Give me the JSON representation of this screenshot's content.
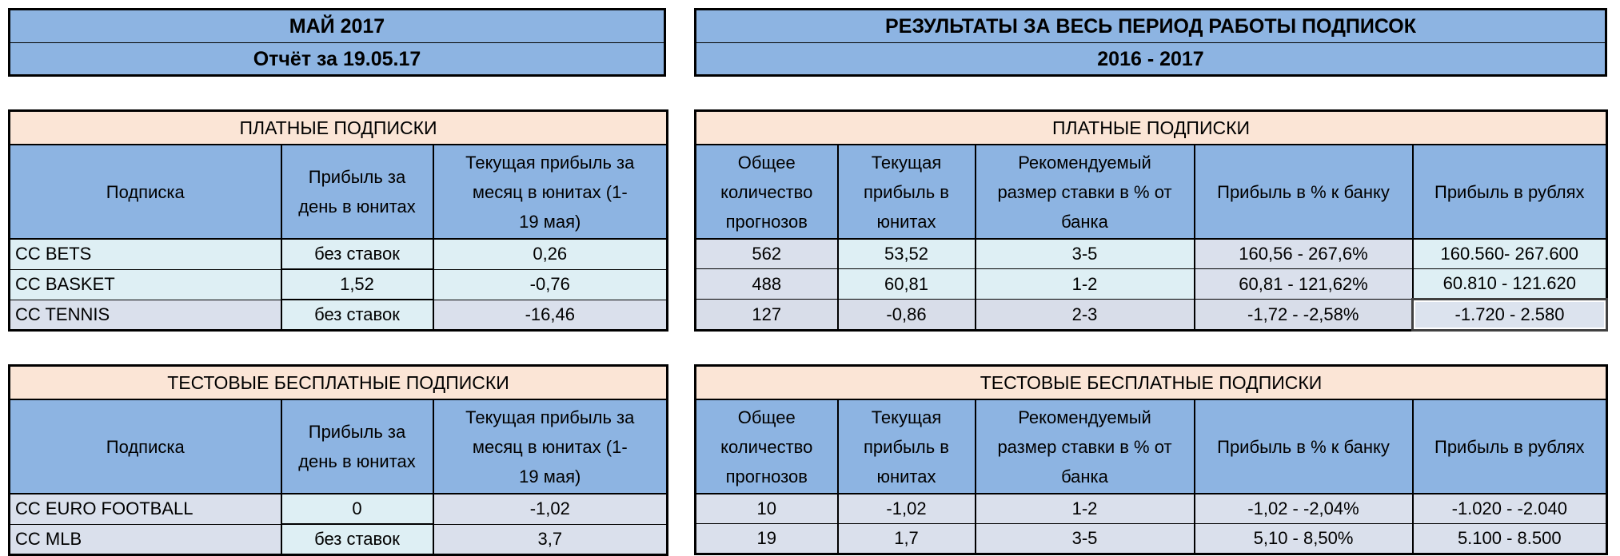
{
  "banners": {
    "left": {
      "title": "МАЙ 2017",
      "subtitle": "Отчёт за 19.05.17"
    },
    "right": {
      "title": "РЕЗУЛЬТАТЫ ЗА ВЕСЬ ПЕРИОД РАБОТЫ ПОДПИСОК",
      "subtitle": "2016 - 2017"
    }
  },
  "colors": {
    "banner_blue": "#8DB4E2",
    "section_peach": "#FBE5D6",
    "row_cyan": "#DEEFF4",
    "row_lavender": "#DAE0EC",
    "border_black": "#000000"
  },
  "monthly_report": {
    "columns": [
      "Подписка",
      "Прибыль за\nдень в юнитах",
      "Текущая прибыль за\nмесяц в юнитах (1-\n19 мая)"
    ],
    "sections": [
      {
        "title": "ПЛАТНЫЕ ПОДПИСКИ",
        "rows": [
          [
            "CC BETS",
            "без ставок",
            "0,26"
          ],
          [
            "CC BASKET",
            "1,52",
            "-0,76"
          ],
          [
            "CC TENNIS",
            "без ставок",
            "-16,46"
          ]
        ]
      },
      {
        "title": "ТЕСТОВЫЕ БЕСПЛАТНЫЕ ПОДПИСКИ",
        "rows": [
          [
            "CC EURO FOOTBALL",
            "0",
            "-1,02"
          ],
          [
            "CC MLB",
            "без ставок",
            "3,7"
          ]
        ]
      }
    ]
  },
  "alltime_results": {
    "columns": [
      "Общее\nколичество\nпрогнозов",
      "Текущая\nприбыль в\nюнитах",
      "Рекомендуемый\nразмер ставки в % от\nбанка",
      "Прибыль в % к банку",
      "Прибыль в рублях"
    ],
    "sections": [
      {
        "title": "ПЛАТНЫЕ ПОДПИСКИ",
        "rows": [
          [
            "562",
            "53,52",
            "3-5",
            "160,56 - 267,6%",
            "160.560- 267.600"
          ],
          [
            "488",
            "60,81",
            "1-2",
            "60,81 - 121,62%",
            "60.810 - 121.620"
          ],
          [
            "127",
            "-0,86",
            "2-3",
            "-1,72 - -2,58%",
            "-1.720 - 2.580"
          ]
        ]
      },
      {
        "title": "ТЕСТОВЫЕ БЕСПЛАТНЫЕ ПОДПИСКИ",
        "rows": [
          [
            "10",
            "-1,02",
            "1-2",
            "-1,02 - -2,04%",
            "-1.020 - -2.040"
          ],
          [
            "19",
            "1,7",
            "3-5",
            "5,10 - 8,50%",
            "5.100 - 8.500"
          ]
        ]
      }
    ]
  }
}
